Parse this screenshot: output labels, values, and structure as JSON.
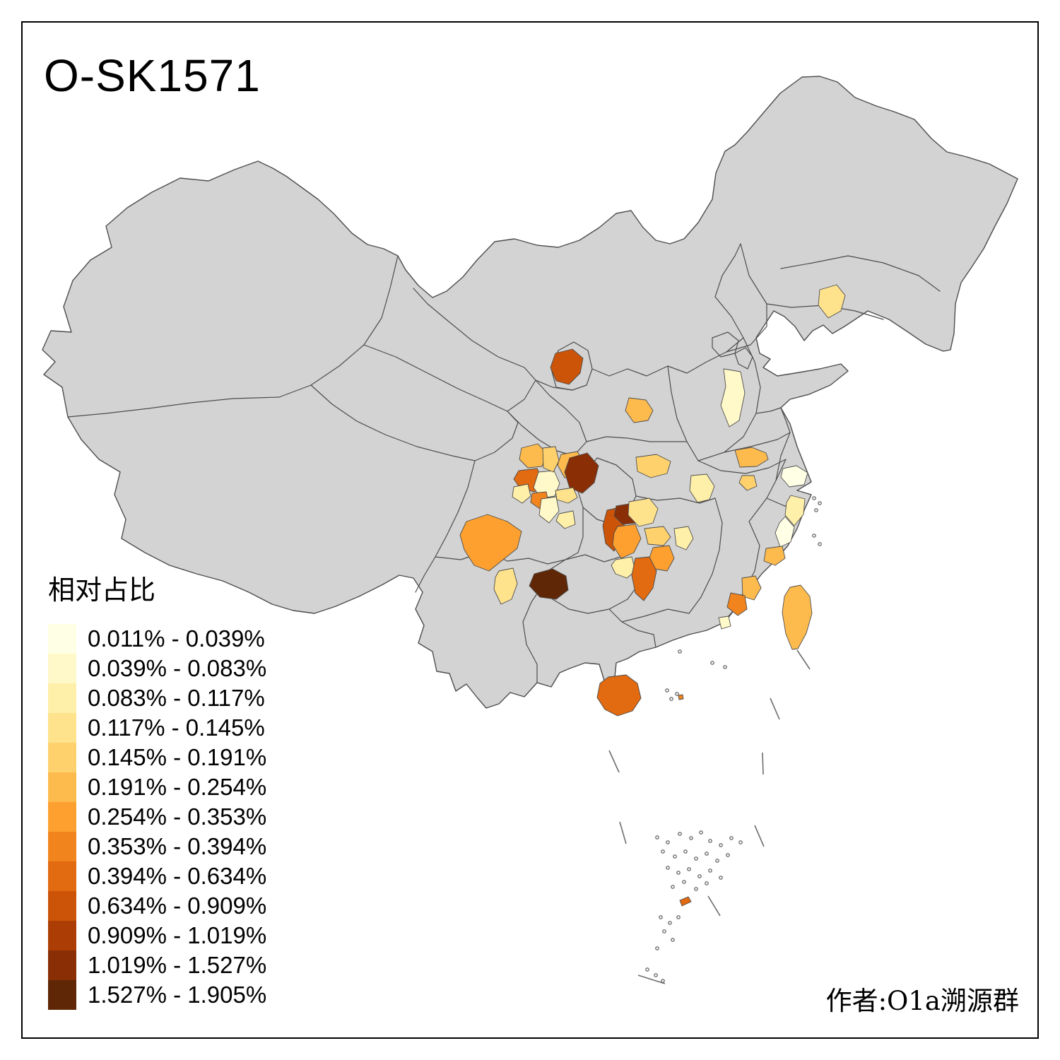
{
  "title": "O-SK1571",
  "attribution": "作者:O1a溯源群",
  "legend": {
    "title": "相对占比",
    "items": [
      {
        "label": "0.011% - 0.039%",
        "color": "#FFFFE5"
      },
      {
        "label": "0.039% - 0.083%",
        "color": "#FFF8C8"
      },
      {
        "label": "0.083% - 0.117%",
        "color": "#FEEFA9"
      },
      {
        "label": "0.117% - 0.145%",
        "color": "#FEE28C"
      },
      {
        "label": "0.145% - 0.191%",
        "color": "#FED16C"
      },
      {
        "label": "0.191% - 0.254%",
        "color": "#FDBB4E"
      },
      {
        "label": "0.254% - 0.353%",
        "color": "#FDA030"
      },
      {
        "label": "0.353% - 0.394%",
        "color": "#F2841D"
      },
      {
        "label": "0.394% - 0.634%",
        "color": "#E26A10"
      },
      {
        "label": "0.634% - 0.909%",
        "color": "#CB5408"
      },
      {
        "label": "0.909% - 1.019%",
        "color": "#AC3E05"
      },
      {
        "label": "1.019% - 1.527%",
        "color": "#8A2E06"
      },
      {
        "label": "1.527% - 1.905%",
        "color": "#5F2706"
      }
    ]
  },
  "map": {
    "base_fill": "#D3D3D3",
    "border_color": "#4D4D4D",
    "sea_color": "#FFFFFF",
    "frame_color": "#000000",
    "regions": [
      {
        "id": "shenyang",
        "bin": 4
      },
      {
        "id": "shanxi-taiyuan",
        "bin": 2
      },
      {
        "id": "ningxia-wuzhong",
        "bin": 10
      },
      {
        "id": "qingyang",
        "bin": 6
      },
      {
        "id": "nanyang",
        "bin": 5
      },
      {
        "id": "hefei",
        "bin": 6
      },
      {
        "id": "anhui-south",
        "bin": 5
      },
      {
        "id": "xiangyang",
        "bin": 3
      },
      {
        "id": "shanghai",
        "bin": 1
      },
      {
        "id": "zhejiang-ne",
        "bin": 3
      },
      {
        "id": "zhejiang-se",
        "bin": 1
      },
      {
        "id": "wenzhou",
        "bin": 6
      },
      {
        "id": "quanzhou",
        "bin": 6
      },
      {
        "id": "xiamen",
        "bin": 8
      },
      {
        "id": "shantou",
        "bin": 2
      },
      {
        "id": "taiwan",
        "bin": 6
      },
      {
        "id": "hainan",
        "bin": 9
      },
      {
        "id": "mianyang",
        "bin": 6
      },
      {
        "id": "deyang",
        "bin": 9
      },
      {
        "id": "chengdu",
        "bin": 2
      },
      {
        "id": "suining",
        "bin": 5
      },
      {
        "id": "nanchong",
        "bin": 6
      },
      {
        "id": "dazhou-bazhong",
        "bin": 12
      },
      {
        "id": "guangan",
        "bin": 4
      },
      {
        "id": "leshan",
        "bin": 8
      },
      {
        "id": "yibin",
        "bin": 2
      },
      {
        "id": "luzhou",
        "bin": 3
      },
      {
        "id": "chengdu-west",
        "bin": 3
      },
      {
        "id": "liangshan",
        "bin": 7
      },
      {
        "id": "panzhihua-chuxiong",
        "bin": 4
      },
      {
        "id": "bijie",
        "bin": 13
      },
      {
        "id": "xiangxi",
        "bin": 10
      },
      {
        "id": "zhangjiajie",
        "bin": 12
      },
      {
        "id": "changde",
        "bin": 4
      },
      {
        "id": "yiyang",
        "bin": 7
      },
      {
        "id": "hunan-mid",
        "bin": 5
      },
      {
        "id": "loudi",
        "bin": 7
      },
      {
        "id": "shaoyang",
        "bin": 3
      },
      {
        "id": "huaihua",
        "bin": 9
      },
      {
        "id": "hengyang",
        "bin": 3
      },
      {
        "id": "spratly-islet",
        "bin": 9
      },
      {
        "id": "paracel-islet",
        "bin": 8
      }
    ]
  }
}
